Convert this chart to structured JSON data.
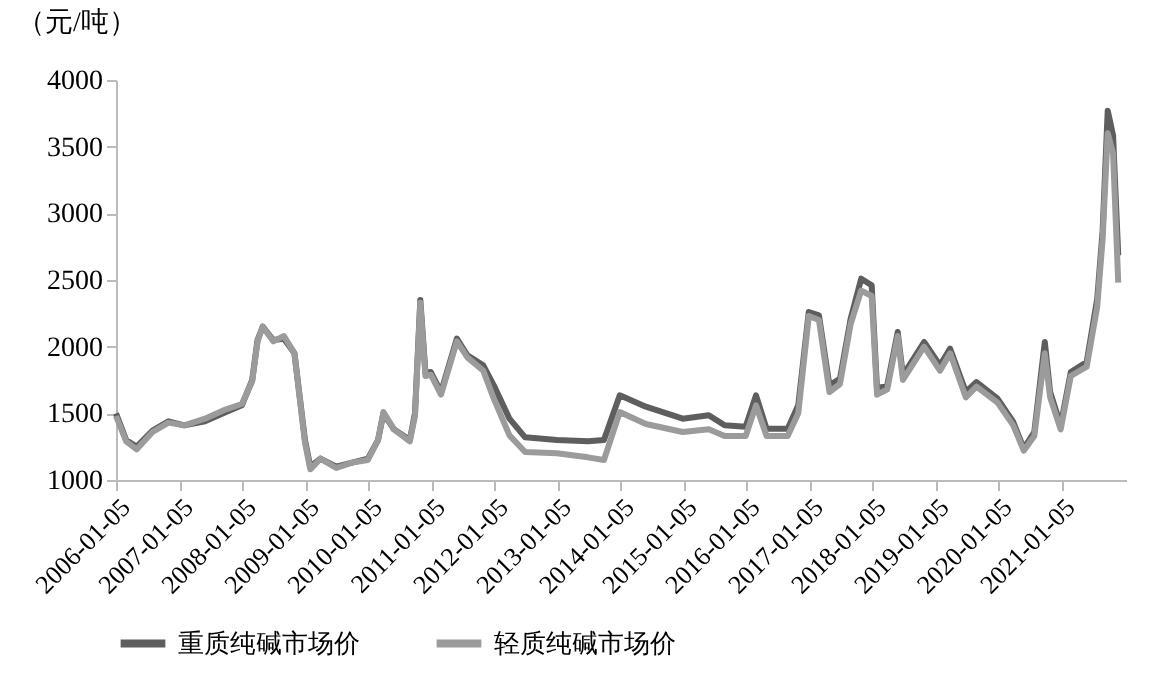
{
  "chart_data": {
    "type": "line",
    "ylabel": "（元/吨）",
    "x": [
      "2006-01",
      "2006-03",
      "2006-05",
      "2006-08",
      "2006-11",
      "2007-02",
      "2007-06",
      "2007-10",
      "2008-01",
      "2008-03",
      "2008-04",
      "2008-05",
      "2008-07",
      "2008-09",
      "2008-11",
      "2009-01",
      "2009-02",
      "2009-04",
      "2009-07",
      "2009-10",
      "2010-01",
      "2010-03",
      "2010-04",
      "2010-06",
      "2010-09",
      "2010-10",
      "2010-11",
      "2010-12",
      "2011-01",
      "2011-03",
      "2011-06",
      "2011-08",
      "2011-11",
      "2012-01",
      "2012-04",
      "2012-07",
      "2013-01",
      "2013-07",
      "2013-10",
      "2014-01",
      "2014-06",
      "2015-01",
      "2015-06",
      "2015-09",
      "2016-01",
      "2016-03",
      "2016-05",
      "2016-09",
      "2016-11",
      "2017-01",
      "2017-03",
      "2017-05",
      "2017-07",
      "2017-09",
      "2017-11",
      "2018-01",
      "2018-02",
      "2018-04",
      "2018-06",
      "2018-07",
      "2018-11",
      "2019-02",
      "2019-04",
      "2019-07",
      "2019-09",
      "2020-01",
      "2020-04",
      "2020-06",
      "2020-08",
      "2020-10",
      "2020-11",
      "2021-01",
      "2021-03",
      "2021-06",
      "2021-08",
      "2021-09",
      "2021-10",
      "2021-11",
      "2021-12"
    ],
    "series": [
      {
        "name": "重质纯碱市场价",
        "color": "#5e5e5e",
        "values": [
          1500,
          1300,
          1250,
          1370,
          1440,
          1410,
          1440,
          1510,
          1560,
          1750,
          2050,
          2150,
          2050,
          2060,
          1950,
          1300,
          1100,
          1160,
          1100,
          1130,
          1160,
          1300,
          1500,
          1380,
          1300,
          1500,
          2350,
          1800,
          1810,
          1660,
          2060,
          1935,
          1860,
          1710,
          1460,
          1320,
          1300,
          1290,
          1300,
          1635,
          1550,
          1460,
          1485,
          1410,
          1400,
          1635,
          1385,
          1385,
          1560,
          2260,
          2235,
          1710,
          1760,
          2210,
          2510,
          2460,
          1685,
          1710,
          2110,
          1785,
          2035,
          1860,
          1985,
          1660,
          1735,
          1610,
          1435,
          1235,
          1360,
          2035,
          1660,
          1410,
          1810,
          1885,
          2360,
          2860,
          3770,
          3585,
          2685
        ]
      },
      {
        "name": "轻质纯碱市场价",
        "color": "#9b9b9b",
        "values": [
          1480,
          1290,
          1230,
          1360,
          1430,
          1410,
          1460,
          1530,
          1570,
          1740,
          2040,
          2150,
          2040,
          2080,
          1950,
          1280,
          1080,
          1160,
          1090,
          1130,
          1150,
          1300,
          1510,
          1380,
          1290,
          1480,
          2330,
          1780,
          1790,
          1640,
          2040,
          1920,
          1820,
          1610,
          1335,
          1210,
          1200,
          1170,
          1150,
          1510,
          1420,
          1360,
          1380,
          1330,
          1330,
          1560,
          1330,
          1330,
          1500,
          2230,
          2200,
          1660,
          1720,
          2170,
          2420,
          2380,
          1640,
          1680,
          2080,
          1750,
          2000,
          1820,
          1950,
          1620,
          1700,
          1580,
          1410,
          1220,
          1330,
          1950,
          1620,
          1380,
          1780,
          1850,
          2300,
          2800,
          3600,
          3450,
          2480
        ]
      }
    ],
    "ylim": [
      1000,
      4000
    ],
    "yticks": [
      1000,
      1500,
      2000,
      2500,
      3000,
      3500,
      4000
    ],
    "xlim": [
      "2006-01-01",
      "2022-01-15"
    ],
    "xticks": [
      "2006-01-05",
      "2007-01-05",
      "2008-01-05",
      "2009-01-05",
      "2010-01-05",
      "2011-01-05",
      "2012-01-05",
      "2013-01-05",
      "2014-01-05",
      "2015-01-05",
      "2016-01-05",
      "2017-01-05",
      "2018-01-05",
      "2019-01-05",
      "2020-01-05",
      "2021-01-05"
    ],
    "legend": "bottom",
    "grid": false,
    "marker": "none",
    "line_style": "solid"
  }
}
